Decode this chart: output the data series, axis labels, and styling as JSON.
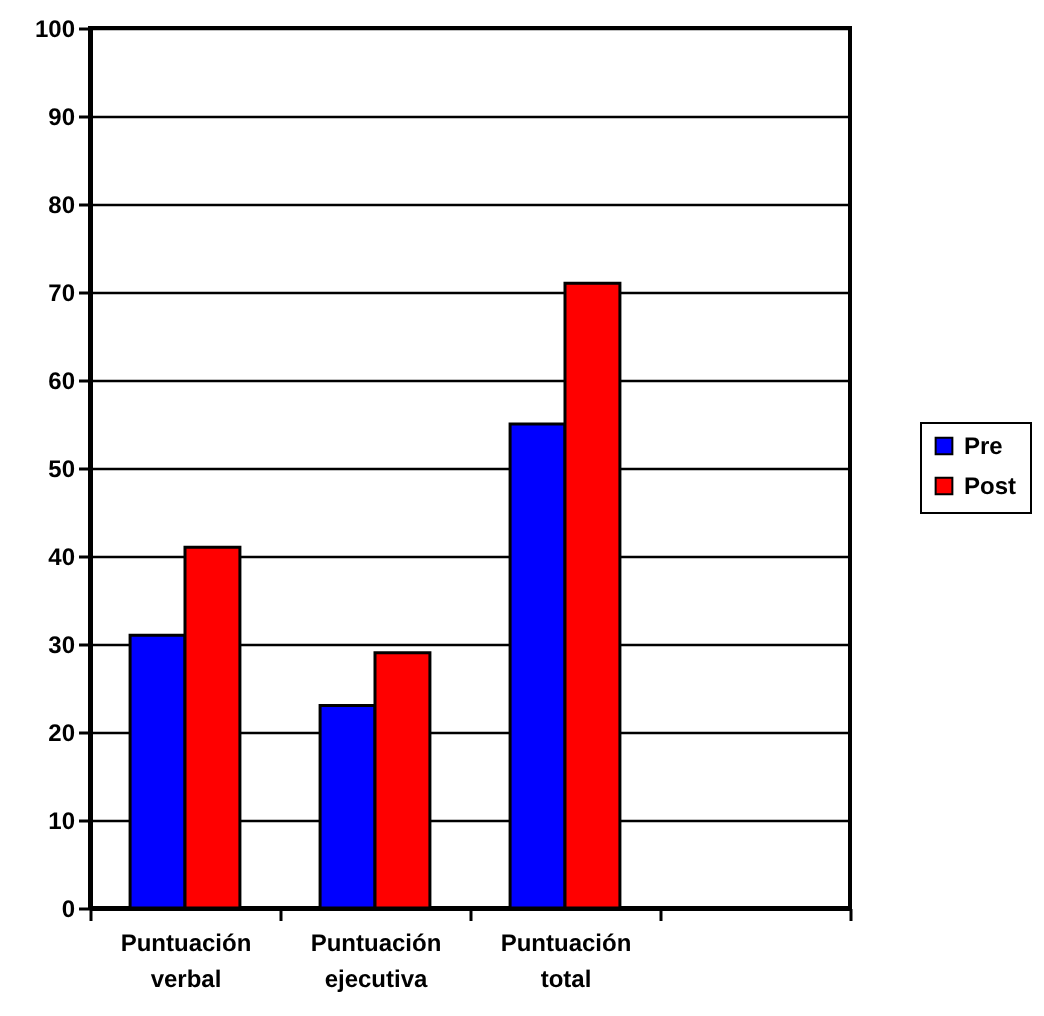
{
  "chart_data": {
    "type": "bar",
    "categories": [
      "Puntuación verbal",
      "Puntuación ejecutiva",
      "Puntuación total",
      null
    ],
    "series": [
      {
        "name": "Pre",
        "color": "#0000ff",
        "values": [
          31,
          23,
          55,
          null
        ]
      },
      {
        "name": "Post",
        "color": "#ff0000",
        "values": [
          41,
          29,
          71,
          null
        ]
      }
    ],
    "ylim": [
      0,
      100
    ],
    "yticks": [
      0,
      10,
      20,
      30,
      40,
      50,
      60,
      70,
      80,
      90,
      100
    ],
    "grid": "y",
    "legend": "right"
  }
}
